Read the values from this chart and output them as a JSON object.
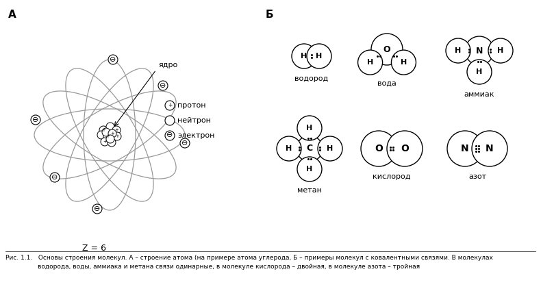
{
  "title_A": "А",
  "title_B": "Б",
  "Z_label": "Z = 6",
  "nucleus_label": "ядро",
  "mol_labels": [
    "водород",
    "вода",
    "аммиак",
    "метан",
    "кислород",
    "азот"
  ],
  "caption_line1": "Рис. 1.1.   Основы строения молекул. А – строение атома (на примере атома углерода, Б – примеры молекул с ковалентными связями. В молекулах",
  "caption_line2": "водорода, воды, аммиака и метана связи одинарные, в молекуле кислорода – двойная, в молекуле азота – тройная",
  "bg_color": "#ffffff",
  "orbit_color": "#999999",
  "nucleus_ec": "#000000",
  "mol_ec": "#000000"
}
